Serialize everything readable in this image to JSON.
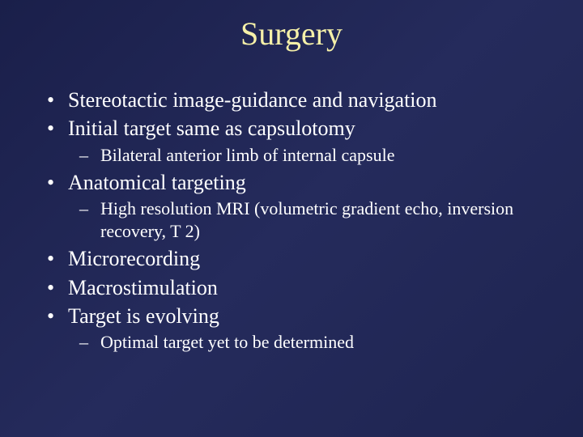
{
  "slide": {
    "title": "Surgery",
    "title_color": "#f5f0a8",
    "title_fontsize": 40,
    "background_gradient": [
      "#1a1f4a",
      "#252b5c",
      "#1e2450"
    ],
    "body_color": "#ffffff",
    "body_fontsize_l1": 26,
    "body_fontsize_l2": 22,
    "font_family": "Times New Roman",
    "bullets": [
      {
        "text": "Stereotactic image-guidance and navigation",
        "sub": []
      },
      {
        "text": "Initial target same as capsulotomy",
        "sub": [
          {
            "text": "Bilateral anterior limb of internal capsule"
          }
        ]
      },
      {
        "text": "Anatomical targeting",
        "sub": [
          {
            "text": "High resolution MRI (volumetric gradient echo, inversion recovery, T 2)"
          }
        ]
      },
      {
        "text": "Microrecording",
        "sub": []
      },
      {
        "text": "Macrostimulation",
        "sub": []
      },
      {
        "text": "Target is evolving",
        "sub": [
          {
            "text": "Optimal target yet to be determined"
          }
        ]
      }
    ]
  }
}
